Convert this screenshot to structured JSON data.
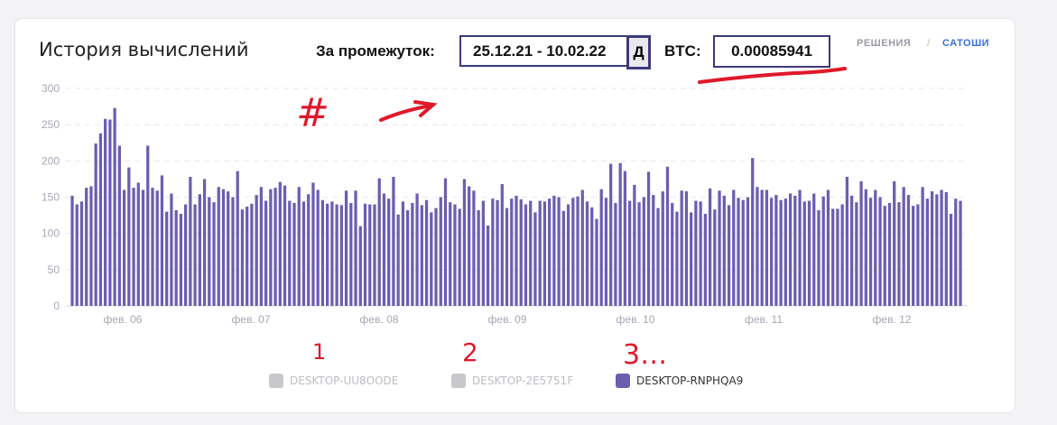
{
  "header": {
    "title": "История вычислений",
    "period_label": "За промежуток:",
    "period_value": "25.12.21 - 10.02.22",
    "period_button": "Д",
    "btc_label": "BTC:",
    "btc_value": "0.00085941",
    "unit_options": [
      "РЕШЕНИЯ",
      "/",
      "САТОШИ"
    ],
    "active_unit": "САТОШИ"
  },
  "annotations": {
    "hash": "#",
    "n1": "1",
    "n2": "2",
    "n3": "3…"
  },
  "colors": {
    "bar": "#6b5eb0",
    "grid": "#e6e7ee",
    "annotation": "#e0192a",
    "active_unit": "#3a6fd8",
    "inactive_legend": "#c8c8cc"
  },
  "chart_data": {
    "type": "bar",
    "title": "",
    "xlabel": "",
    "ylabel": "",
    "ylim": [
      0,
      300
    ],
    "yticks": [
      0,
      50,
      100,
      150,
      200,
      250,
      300
    ],
    "xtick_labels": [
      "фев. 06",
      "фев. 07",
      "фев. 08",
      "фев. 09",
      "фев. 10",
      "фев. 11",
      "фев. 12"
    ],
    "grid": true,
    "legend_position": "bottom",
    "series": [
      {
        "name": "DESKTOP-UU8OODE",
        "visible": false,
        "values": []
      },
      {
        "name": "DESKTOP-2E5751F",
        "visible": false,
        "values": []
      },
      {
        "name": "DESKTOP-RNPHQA9",
        "visible": true,
        "values": [
          152,
          140,
          144,
          163,
          165,
          224,
          238,
          258,
          257,
          273,
          221,
          160,
          191,
          163,
          170,
          160,
          221,
          163,
          159,
          180,
          130,
          155,
          132,
          127,
          140,
          178,
          140,
          154,
          175,
          150,
          143,
          164,
          161,
          158,
          150,
          186,
          133,
          137,
          141,
          153,
          164,
          145,
          161,
          163,
          171,
          166,
          145,
          142,
          164,
          144,
          154,
          170,
          160,
          146,
          141,
          144,
          140,
          139,
          159,
          142,
          159,
          110,
          141,
          140,
          140,
          176,
          155,
          148,
          178,
          126,
          144,
          132,
          142,
          155,
          139,
          146,
          129,
          135,
          150,
          176,
          143,
          140,
          134,
          175,
          165,
          159,
          132,
          145,
          111,
          148,
          146,
          168,
          135,
          148,
          152,
          147,
          140,
          145,
          129,
          145,
          144,
          148,
          152,
          150,
          131,
          140,
          149,
          151,
          160,
          144,
          136,
          120,
          161,
          149,
          196,
          142,
          197,
          186,
          145,
          167,
          143,
          150,
          185,
          153,
          135,
          158,
          192,
          142,
          130,
          159,
          158,
          129,
          145,
          144,
          127,
          162,
          133,
          159,
          152,
          139,
          160,
          149,
          146,
          150,
          204,
          164,
          160,
          160,
          149,
          153,
          146,
          148,
          155,
          152,
          160,
          144,
          145,
          155,
          132,
          151,
          160,
          134,
          134,
          140,
          178,
          152,
          143,
          172,
          161,
          149,
          160,
          150,
          138,
          142,
          172,
          143,
          164,
          153,
          138,
          140,
          164,
          148,
          158,
          154,
          160,
          157,
          127,
          148,
          145
        ]
      }
    ],
    "legend": [
      {
        "label": "DESKTOP-UU8OODE",
        "color": "#c8c8cc",
        "active": false
      },
      {
        "label": "DESKTOP-2E5751F",
        "color": "#c8c8cc",
        "active": false
      },
      {
        "label": "DESKTOP-RNPHQA9",
        "color": "#6b5eb0",
        "active": true
      }
    ]
  }
}
